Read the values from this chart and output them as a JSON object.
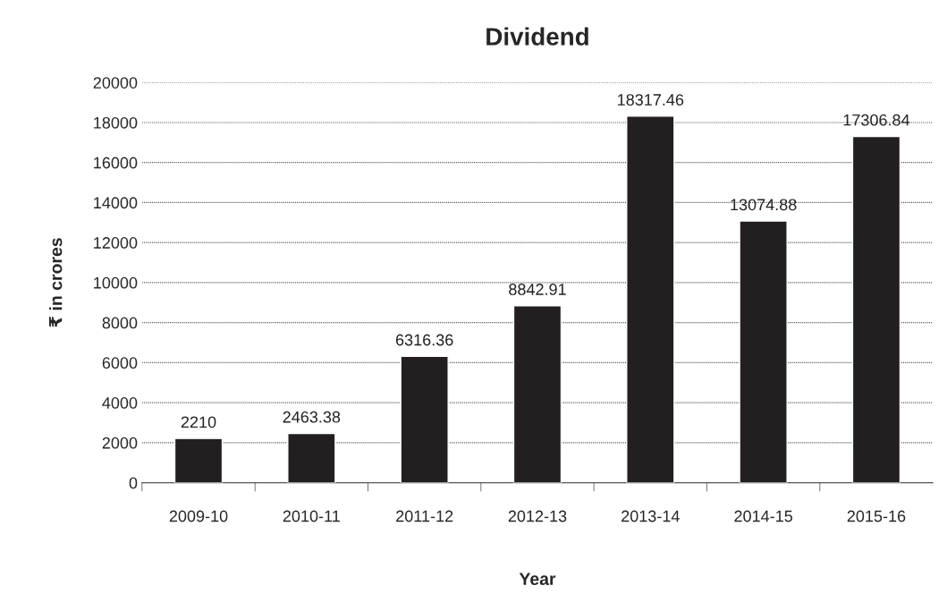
{
  "chart_data": {
    "type": "bar",
    "title": "Dividend",
    "xlabel": "Year",
    "ylabel": "₹ in crores",
    "categories": [
      "2009-10",
      "2010-11",
      "2011-12",
      "2012-13",
      "2013-14",
      "2014-15",
      "2015-16"
    ],
    "values": [
      2210,
      2463.38,
      6316.36,
      8842.91,
      18317.46,
      13074.88,
      17306.84
    ],
    "color": "#231f20",
    "ylim": [
      0,
      20000
    ],
    "yticks": [
      0,
      2000,
      4000,
      6000,
      8000,
      10000,
      12000,
      14000,
      16000,
      18000,
      20000
    ],
    "grid": "y",
    "data_labels": true
  }
}
